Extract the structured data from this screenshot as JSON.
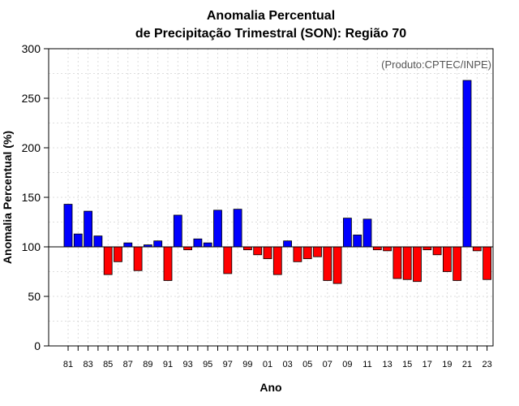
{
  "chart_data": {
    "type": "bar",
    "title_line1": "Anomalia Percentual",
    "title_line2": "de Precipitação Trimestral (SON): Região 70",
    "xlabel": "Ano",
    "ylabel": "Anomalia Percentual (%)",
    "annotation": "(Produto:CPTEC/INPE)",
    "baseline": 100,
    "ylim": [
      0,
      300
    ],
    "yticks": [
      0,
      50,
      100,
      150,
      200,
      250,
      300
    ],
    "categories": [
      "81",
      "82",
      "83",
      "84",
      "85",
      "86",
      "87",
      "88",
      "89",
      "90",
      "91",
      "92",
      "93",
      "94",
      "95",
      "96",
      "97",
      "98",
      "99",
      "00",
      "01",
      "02",
      "03",
      "04",
      "05",
      "06",
      "07",
      "08",
      "09",
      "10",
      "11",
      "12",
      "13",
      "14",
      "15",
      "16",
      "17",
      "18",
      "19",
      "20",
      "21",
      "22",
      "23"
    ],
    "xtick_labels": [
      "81",
      "83",
      "85",
      "87",
      "89",
      "91",
      "93",
      "95",
      "97",
      "99",
      "01",
      "03",
      "05",
      "07",
      "09",
      "11",
      "13",
      "15",
      "17",
      "19",
      "21",
      "23"
    ],
    "values": [
      143,
      113,
      136,
      111,
      72,
      85,
      104,
      76,
      102,
      106,
      66,
      132,
      97,
      108,
      104,
      137,
      73,
      138,
      97,
      92,
      88,
      72,
      106,
      85,
      88,
      90,
      66,
      63,
      129,
      112,
      128,
      97,
      96,
      68,
      67,
      65,
      97,
      92,
      75,
      66,
      268,
      96,
      67
    ],
    "colors": {
      "above": "#0000ff",
      "below": "#ff0000",
      "grid": "#d3d3d3",
      "axis": "#000000"
    }
  }
}
